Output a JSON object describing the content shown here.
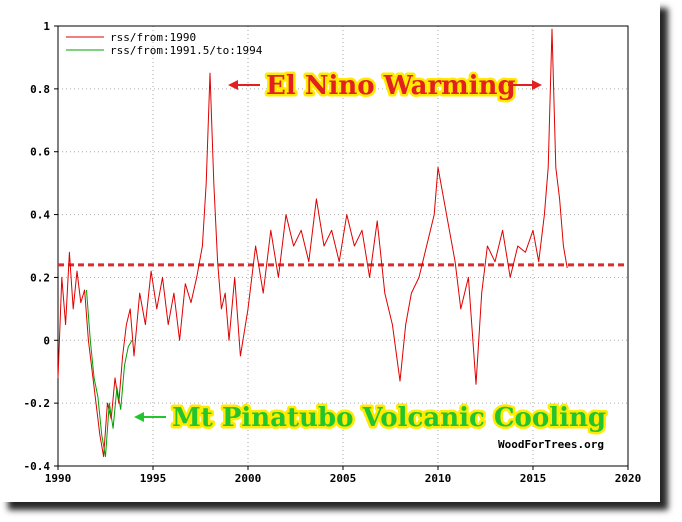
{
  "chart_data": {
    "type": "line",
    "title": "",
    "xlabel": "",
    "ylabel": "",
    "xlim": [
      1990,
      2020
    ],
    "ylim": [
      -0.4,
      1.0
    ],
    "x_ticks": [
      1990,
      1995,
      2000,
      2005,
      2010,
      2015,
      2020
    ],
    "x_tick_labels": [
      "1990",
      "1995",
      "2000",
      "2005",
      "2010",
      "2015",
      "2020"
    ],
    "y_ticks": [
      -0.4,
      -0.2,
      0,
      0.2,
      0.4,
      0.6,
      0.8,
      1.0
    ],
    "y_tick_labels": [
      "-0.4",
      "-0.2",
      "0",
      "0.2",
      "0.4",
      "0.6",
      "0.8",
      "1"
    ],
    "grid": true,
    "legend_position": "top-left",
    "series": [
      {
        "name": "rss/from:1990",
        "color": "#e00000",
        "x": [
          1990.0,
          1990.2,
          1990.4,
          1990.6,
          1990.8,
          1991.0,
          1991.2,
          1991.4,
          1991.6,
          1991.8,
          1992.0,
          1992.2,
          1992.4,
          1992.6,
          1992.8,
          1993.0,
          1993.2,
          1993.4,
          1993.6,
          1993.8,
          1994.0,
          1994.3,
          1994.6,
          1994.9,
          1995.2,
          1995.5,
          1995.8,
          1996.1,
          1996.4,
          1996.7,
          1997.0,
          1997.3,
          1997.6,
          1997.8,
          1998.0,
          1998.2,
          1998.4,
          1998.6,
          1998.8,
          1999.0,
          1999.3,
          1999.6,
          2000.0,
          2000.4,
          2000.8,
          2001.2,
          2001.6,
          2002.0,
          2002.4,
          2002.8,
          2003.2,
          2003.6,
          2004.0,
          2004.4,
          2004.8,
          2005.2,
          2005.6,
          2006.0,
          2006.4,
          2006.8,
          2007.2,
          2007.6,
          2008.0,
          2008.3,
          2008.6,
          2009.0,
          2009.4,
          2009.8,
          2010.0,
          2010.3,
          2010.6,
          2010.9,
          2011.2,
          2011.6,
          2012.0,
          2012.3,
          2012.6,
          2013.0,
          2013.4,
          2013.8,
          2014.2,
          2014.6,
          2015.0,
          2015.3,
          2015.6,
          2015.8,
          2016.0,
          2016.2,
          2016.4,
          2016.6,
          2016.8
        ],
        "y": [
          -0.12,
          0.2,
          0.05,
          0.28,
          0.1,
          0.22,
          0.12,
          0.16,
          0.0,
          -0.1,
          -0.2,
          -0.3,
          -0.37,
          -0.2,
          -0.25,
          -0.12,
          -0.2,
          -0.05,
          0.05,
          0.1,
          -0.05,
          0.15,
          0.05,
          0.22,
          0.1,
          0.2,
          0.05,
          0.15,
          0.0,
          0.18,
          0.12,
          0.2,
          0.3,
          0.5,
          0.85,
          0.5,
          0.25,
          0.1,
          0.15,
          0.0,
          0.2,
          -0.05,
          0.1,
          0.3,
          0.15,
          0.35,
          0.2,
          0.4,
          0.3,
          0.35,
          0.25,
          0.45,
          0.3,
          0.35,
          0.25,
          0.4,
          0.3,
          0.35,
          0.2,
          0.38,
          0.15,
          0.05,
          -0.13,
          0.05,
          0.15,
          0.2,
          0.3,
          0.4,
          0.55,
          0.45,
          0.35,
          0.25,
          0.1,
          0.2,
          -0.14,
          0.15,
          0.3,
          0.25,
          0.35,
          0.2,
          0.3,
          0.28,
          0.35,
          0.25,
          0.4,
          0.55,
          0.99,
          0.55,
          0.45,
          0.3,
          0.23
        ]
      },
      {
        "name": "rss/from:1991.5/to:1994",
        "color": "#00a000",
        "x": [
          1991.5,
          1991.7,
          1991.9,
          1992.1,
          1992.3,
          1992.5,
          1992.7,
          1992.9,
          1993.1,
          1993.3,
          1993.5,
          1993.7,
          1993.9
        ],
        "y": [
          0.16,
          0.0,
          -0.12,
          -0.18,
          -0.3,
          -0.37,
          -0.2,
          -0.28,
          -0.15,
          -0.22,
          -0.08,
          -0.02,
          0.0
        ]
      }
    ],
    "reference_line": {
      "y": 0.24,
      "style": "dashed",
      "color": "#dd2a2a"
    },
    "annotations": [
      {
        "text": "El Nino Warming",
        "color": "#e32020",
        "outline": "#ffea00"
      },
      {
        "text": "Mt Pinatubo Volcanic Cooling",
        "color": "#22c52e",
        "outline": "#ffea00"
      }
    ],
    "credit": "WoodForTrees.org"
  }
}
